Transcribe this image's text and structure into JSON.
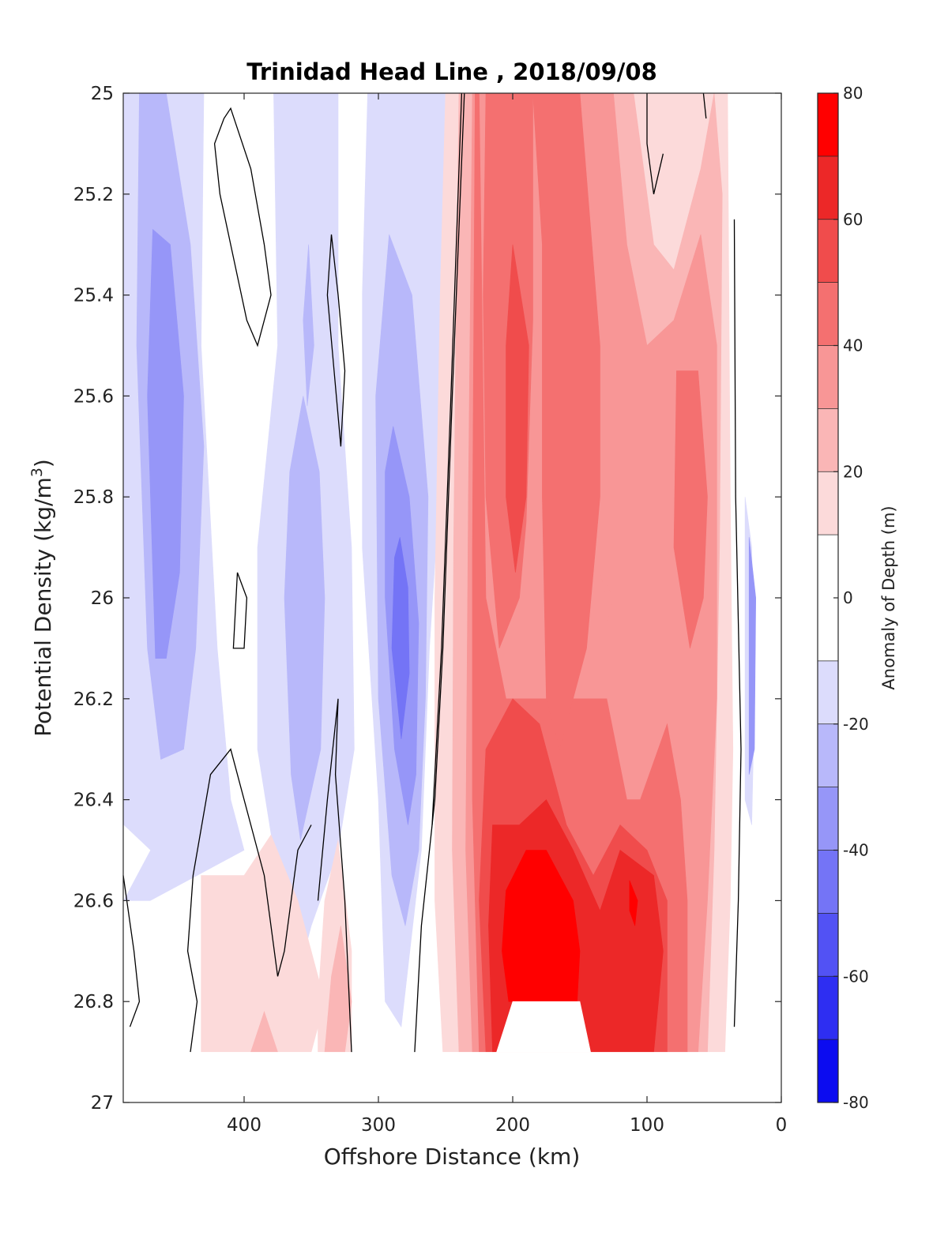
{
  "chart_data": {
    "type": "heatmap",
    "subtype": "filled-contour",
    "title": "Trinidad Head Line , 2018/09/08",
    "xlabel": "Offshore Distance (km)",
    "ylabel_main": "Potential Density (kg/m",
    "ylabel_sup": "3",
    "ylabel_close": ")",
    "colorbar_label": "Anomaly of Depth (m)",
    "x_reversed": true,
    "y_reversed": true,
    "xlim": [
      490,
      0
    ],
    "ylim": [
      25,
      27
    ],
    "x_ticks": [
      400,
      300,
      200,
      100,
      0
    ],
    "y_ticks": [
      "25",
      "25.2",
      "25.4",
      "25.6",
      "25.8",
      "26",
      "26.2",
      "26.4",
      "26.6",
      "26.8",
      "27"
    ],
    "y_tick_values": [
      25,
      25.2,
      25.4,
      25.6,
      25.8,
      26,
      26.2,
      26.4,
      26.6,
      26.8,
      27
    ],
    "colorbar_ticks": [
      80,
      60,
      40,
      20,
      0,
      -20,
      -40,
      -60,
      -80
    ],
    "color_levels": [
      -80,
      -70,
      -60,
      -50,
      -40,
      -30,
      -20,
      -10,
      10,
      20,
      30,
      40,
      50,
      60,
      70,
      80
    ],
    "zero_contour_color": "#000000",
    "colors": {
      "blue_10_20": "#dcdcfc",
      "blue_20_30": "#b8b8fa",
      "blue_30_40": "#9696f8",
      "blue_40_50": "#7474f6",
      "blue_50_60": "#5252f4",
      "blue_60_70": "#2e2ef2",
      "blue_70_80": "#0c0cf0",
      "red_10_20": "#fcdada",
      "red_20_30": "#fab6b6",
      "red_30_40": "#f89696",
      "red_40_50": "#f47070",
      "red_50_60": "#f04c4c",
      "red_60_70": "#ec2828",
      "red_70_80": "#ff0000",
      "neutral": "#ffffff"
    },
    "data_extent": {
      "max_density": 26.9,
      "min_distance": 18,
      "max_distance": 490
    },
    "regions": [
      {
        "name": "offshore-negative-band-1",
        "level": -20,
        "x": [
          485,
          440
        ],
        "y": [
          25.0,
          26.7
        ]
      },
      {
        "name": "offshore-negative-core-1",
        "level": -30,
        "x": [
          475,
          450
        ],
        "y": [
          25.0,
          26.3
        ]
      },
      {
        "name": "offshore-negative-peak-1",
        "level": -40,
        "x": [
          468,
          455
        ],
        "y": [
          25.3,
          26.15
        ]
      },
      {
        "name": "mid-negative-band-2",
        "level": -20,
        "x": [
          380,
          335
        ],
        "y": [
          25.0,
          26.7
        ]
      },
      {
        "name": "mid-negative-core-2",
        "level": -30,
        "x": [
          370,
          345
        ],
        "y": [
          25.6,
          26.6
        ]
      },
      {
        "name": "mid-negative-band-3",
        "level": -20,
        "x": [
          310,
          255
        ],
        "y": [
          25.0,
          26.7
        ]
      },
      {
        "name": "mid-negative-core-3",
        "level": -30,
        "x": [
          300,
          265
        ],
        "y": [
          25.3,
          26.6
        ]
      },
      {
        "name": "mid-negative-core-3b",
        "level": -40,
        "x": [
          295,
          270
        ],
        "y": [
          25.7,
          26.5
        ]
      },
      {
        "name": "mid-negative-peak-3",
        "level": -50,
        "x": [
          290,
          275
        ],
        "y": [
          25.9,
          26.3
        ]
      },
      {
        "name": "nearshore-negative-sliver",
        "level": -40,
        "x": [
          26,
          18
        ],
        "y": [
          25.8,
          26.4
        ]
      },
      {
        "name": "bottom-positive-patch-1",
        "level": 10,
        "x": [
          435,
          320
        ],
        "y": [
          26.5,
          26.9
        ]
      },
      {
        "name": "bottom-positive-patch-1b",
        "level": 20,
        "x": [
          330,
          315
        ],
        "y": [
          26.6,
          26.9
        ]
      },
      {
        "name": "main-positive-band",
        "level": 10,
        "x": [
          255,
          40
        ],
        "y": [
          25.0,
          26.9
        ]
      },
      {
        "name": "main-positive-20",
        "level": 20,
        "x": [
          235,
          55
        ],
        "y": [
          25.0,
          26.9
        ]
      },
      {
        "name": "main-positive-30",
        "level": 30,
        "x": [
          225,
          65
        ],
        "y": [
          25.0,
          26.9
        ]
      },
      {
        "name": "main-positive-40",
        "level": 40,
        "x": [
          215,
          160
        ],
        "y": [
          25.0,
          26.9
        ]
      },
      {
        "name": "nearshore-positive-40",
        "level": 40,
        "x": [
          80,
          55
        ],
        "y": [
          25.55,
          26.1
        ]
      },
      {
        "name": "main-positive-50",
        "level": 50,
        "x": [
          205,
          170
        ],
        "y": [
          25.3,
          26.0
        ]
      },
      {
        "name": "deep-positive-50",
        "level": 50,
        "x": [
          220,
          80
        ],
        "y": [
          26.2,
          26.9
        ]
      },
      {
        "name": "deep-positive-60",
        "level": 60,
        "x": [
          215,
          90
        ],
        "y": [
          26.4,
          26.9
        ]
      },
      {
        "name": "deep-positive-peak",
        "level": 70,
        "x": [
          205,
          150
        ],
        "y": [
          26.5,
          26.8
        ]
      }
    ]
  }
}
